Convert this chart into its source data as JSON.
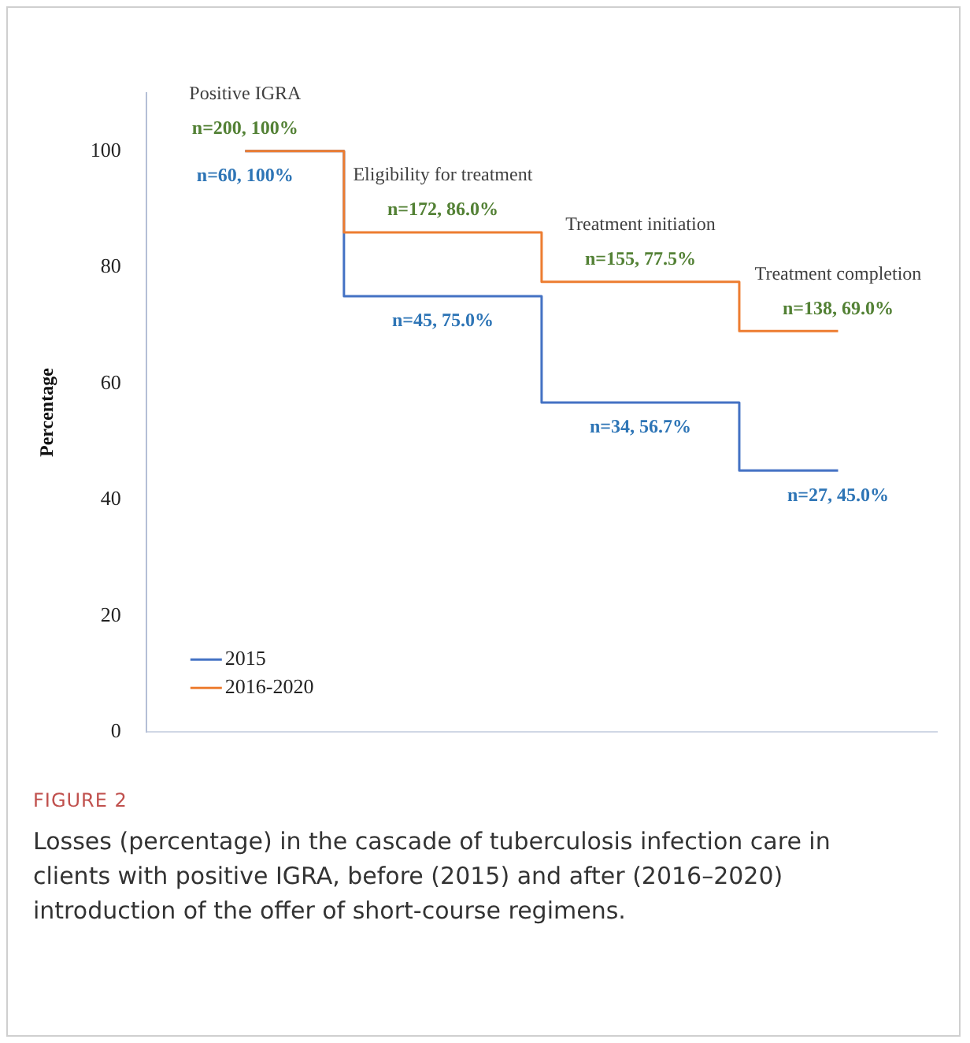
{
  "chart_data": {
    "type": "step",
    "title": "FIGURE 2",
    "subtitle": "Losses (percentage) in the cascade of tuberculosis infection care in clients with positive IGRA, before (2015) and after (2016–2020) introduction of the offer of short-course regimens.",
    "ylabel": "Percentage",
    "categories": [
      null,
      null,
      null,
      null
    ],
    "annotations": [
      "Positive IGRA",
      "Eligibility for treatment",
      "Treatment initiation",
      "Treatment completion"
    ],
    "series": [
      {
        "name": "2015",
        "color": "#4472c4",
        "values": [
          100,
          75.0,
          56.7,
          45.0
        ],
        "value_labels": [
          "n=60, 100%",
          "n=45, 75.0%",
          "n=34, 56.7%",
          "n=27, 45.0%"
        ]
      },
      {
        "name": "2016-2020",
        "color": "#ed7d31",
        "values": [
          100,
          86.0,
          77.5,
          69.0
        ],
        "value_labels": [
          "n=200, 100%",
          "n=172, 86.0%",
          "n=155, 77.5%",
          "n=138, 69.0%"
        ]
      }
    ],
    "ylim": [
      0,
      110
    ],
    "yticks": [
      0,
      20,
      40,
      60,
      80,
      100
    ],
    "tick_labels": "y",
    "grid": false,
    "legend": "bottom left",
    "marker": "none",
    "line_style": "solid"
  }
}
